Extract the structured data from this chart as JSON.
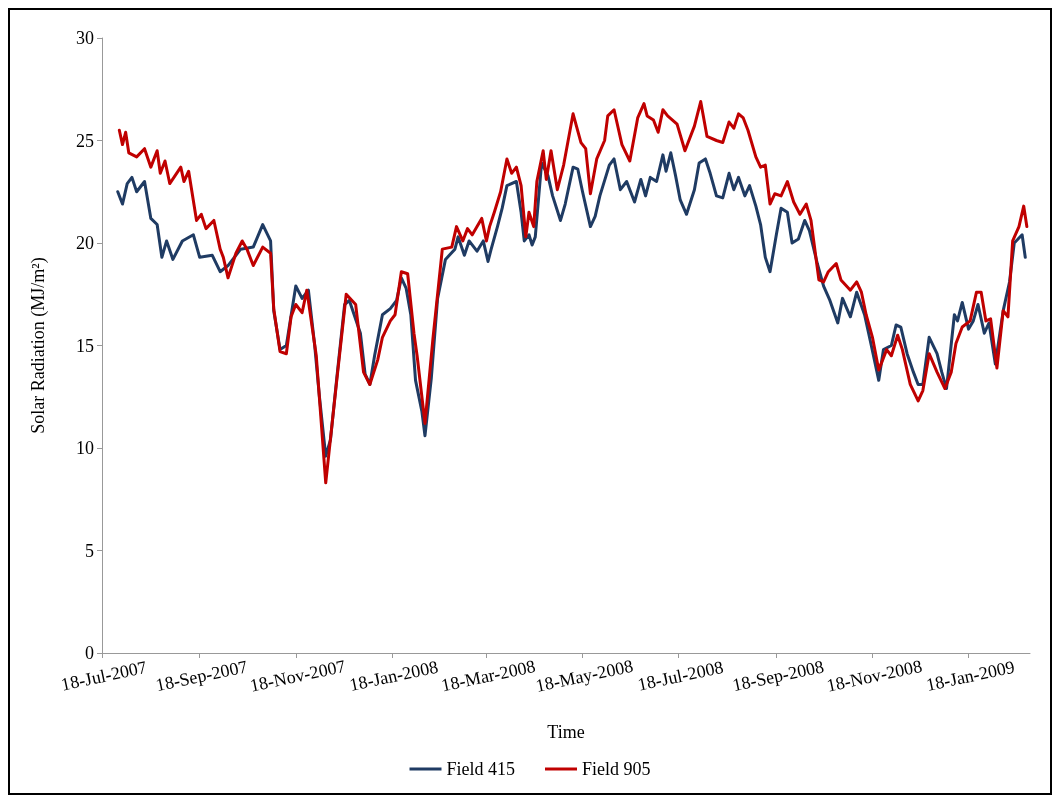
{
  "chart_data": {
    "type": "line",
    "xlabel": "Time",
    "ylabel": "Solar Radiation (MJ/m²)",
    "xlim": [
      "2007-07-18",
      "2009-02-26"
    ],
    "ylim": [
      0,
      30
    ],
    "xticks": [
      {
        "value": "2007-07-18",
        "label": "18-Jul-2007"
      },
      {
        "value": "2007-09-18",
        "label": "18-Sep-2007"
      },
      {
        "value": "2007-11-18",
        "label": "18-Nov-2007"
      },
      {
        "value": "2008-01-18",
        "label": "18-Jan-2008"
      },
      {
        "value": "2008-03-18",
        "label": "18-Mar-2008"
      },
      {
        "value": "2008-05-18",
        "label": "18-May-2008"
      },
      {
        "value": "2008-07-18",
        "label": "18-Jul-2008"
      },
      {
        "value": "2008-09-18",
        "label": "18-Sep-2008"
      },
      {
        "value": "2008-11-18",
        "label": "18-Nov-2008"
      },
      {
        "value": "2009-01-18",
        "label": "18-Jan-2009"
      }
    ],
    "yticks": [
      0,
      5,
      10,
      15,
      20,
      25,
      30
    ],
    "grid": false,
    "legend": "bottom",
    "marker": "none",
    "series": [
      {
        "name": "Field 415",
        "color": "#1f3b63",
        "x": [
          "2007-07-28",
          "2007-07-31",
          "2007-08-03",
          "2007-08-06",
          "2007-08-09",
          "2007-08-14",
          "2007-08-18",
          "2007-08-22",
          "2007-08-25",
          "2007-08-28",
          "2007-09-01",
          "2007-09-07",
          "2007-09-14",
          "2007-09-18",
          "2007-09-26",
          "2007-10-01",
          "2007-10-06",
          "2007-10-14",
          "2007-10-22",
          "2007-10-28",
          "2007-11-02",
          "2007-11-04",
          "2007-11-08",
          "2007-11-12",
          "2007-11-18",
          "2007-11-22",
          "2007-11-26",
          "2007-11-30",
          "2007-12-03",
          "2007-12-07",
          "2007-12-10",
          "2007-12-14",
          "2007-12-19",
          "2007-12-22",
          "2007-12-29",
          "2008-01-01",
          "2008-01-04",
          "2008-01-07",
          "2008-01-12",
          "2008-01-17",
          "2008-01-21",
          "2008-01-24",
          "2008-01-27",
          "2008-01-30",
          "2008-02-02",
          "2008-02-06",
          "2008-02-08",
          "2008-02-12",
          "2008-02-16",
          "2008-02-21",
          "2008-02-27",
          "2008-02-29",
          "2008-03-04",
          "2008-03-07",
          "2008-03-12",
          "2008-03-16",
          "2008-03-19",
          "2008-03-21",
          "2008-03-25",
          "2008-03-28",
          "2008-03-31",
          "2008-04-06",
          "2008-04-09",
          "2008-04-11",
          "2008-04-14",
          "2008-04-16",
          "2008-04-18",
          "2008-04-22",
          "2008-04-26",
          "2008-04-29",
          "2008-05-04",
          "2008-05-07",
          "2008-05-12",
          "2008-05-15",
          "2008-05-18",
          "2008-05-23",
          "2008-05-26",
          "2008-05-29",
          "2008-06-04",
          "2008-06-07",
          "2008-06-11",
          "2008-06-15",
          "2008-06-20",
          "2008-06-24",
          "2008-06-27",
          "2008-06-30",
          "2008-07-04",
          "2008-07-08",
          "2008-07-10",
          "2008-07-13",
          "2008-07-16",
          "2008-07-19",
          "2008-07-23",
          "2008-07-28",
          "2008-07-31",
          "2008-08-04",
          "2008-08-07",
          "2008-08-11",
          "2008-08-15",
          "2008-08-19",
          "2008-08-22",
          "2008-08-25",
          "2008-08-29",
          "2008-09-01",
          "2008-09-05",
          "2008-09-08",
          "2008-09-11",
          "2008-09-14",
          "2008-09-18",
          "2008-09-21",
          "2008-09-25",
          "2008-09-28",
          "2008-10-02",
          "2008-10-06",
          "2008-10-09",
          "2008-10-14",
          "2008-10-18",
          "2008-10-22",
          "2008-10-27",
          "2008-10-30",
          "2008-11-04",
          "2008-11-08",
          "2008-11-13",
          "2008-11-17",
          "2008-11-22",
          "2008-11-25",
          "2008-11-30",
          "2008-12-03",
          "2008-12-06",
          "2008-12-10",
          "2008-12-14",
          "2008-12-17",
          "2008-12-20",
          "2008-12-24",
          "2008-12-29",
          "2009-01-01",
          "2009-01-04",
          "2009-01-09",
          "2009-01-11",
          "2009-01-14",
          "2009-01-18",
          "2009-01-21",
          "2009-01-24",
          "2009-01-28",
          "2009-01-31",
          "2009-02-04",
          "2009-02-09",
          "2009-02-13",
          "2009-02-16",
          "2009-02-21",
          "2009-02-23"
        ],
        "values": [
          22.5,
          21.9,
          22.9,
          23.2,
          22.5,
          23.0,
          21.2,
          20.9,
          19.3,
          20.1,
          19.2,
          20.1,
          20.4,
          19.3,
          19.4,
          18.6,
          18.9,
          19.7,
          19.8,
          20.9,
          20.1,
          16.7,
          14.8,
          15.0,
          17.9,
          17.3,
          17.7,
          15.0,
          12.5,
          9.6,
          10.4,
          13.4,
          17.0,
          17.2,
          15.6,
          13.6,
          13.1,
          14.5,
          16.5,
          16.8,
          17.2,
          18.3,
          17.8,
          16.5,
          13.3,
          11.8,
          10.6,
          13.4,
          17.3,
          19.2,
          19.7,
          20.3,
          19.4,
          20.1,
          19.6,
          20.1,
          19.1,
          19.7,
          20.8,
          21.7,
          22.8,
          23.0,
          21.5,
          20.1,
          20.4,
          19.9,
          20.3,
          23.9,
          23.3,
          22.3,
          21.1,
          21.9,
          23.7,
          23.6,
          22.5,
          20.8,
          21.3,
          22.3,
          23.8,
          24.1,
          22.6,
          23.0,
          22.0,
          23.1,
          22.3,
          23.2,
          23.0,
          24.3,
          23.5,
          24.4,
          23.3,
          22.1,
          21.4,
          22.6,
          23.9,
          24.1,
          23.4,
          22.3,
          22.2,
          23.4,
          22.6,
          23.2,
          22.3,
          22.8,
          21.8,
          20.9,
          19.3,
          18.6,
          20.4,
          21.7,
          21.5,
          20.0,
          20.2,
          21.1,
          20.6,
          19.0,
          17.9,
          17.2,
          16.1,
          17.3,
          16.4,
          17.6,
          16.5,
          15.1,
          13.3,
          14.8,
          15.0,
          16.0,
          15.9,
          14.6,
          13.7,
          13.1,
          13.1,
          15.4,
          14.6,
          13.7,
          12.9,
          16.5,
          16.2,
          17.1,
          15.8,
          16.2,
          17.0,
          15.6,
          16.1,
          14.1,
          16.7,
          18.1,
          20.0,
          20.4,
          19.3
        ]
      },
      {
        "name": "Field 905",
        "color": "#c00000",
        "x": [
          "2007-07-29",
          "2007-07-31",
          "2007-08-02",
          "2007-08-04",
          "2007-08-09",
          "2007-08-14",
          "2007-08-18",
          "2007-08-22",
          "2007-08-24",
          "2007-08-27",
          "2007-08-30",
          "2007-09-06",
          "2007-09-08",
          "2007-09-11",
          "2007-09-16",
          "2007-09-19",
          "2007-09-22",
          "2007-09-27",
          "2007-10-01",
          "2007-10-03",
          "2007-10-06",
          "2007-10-11",
          "2007-10-15",
          "2007-10-18",
          "2007-10-22",
          "2007-10-28",
          "2007-11-02",
          "2007-11-04",
          "2007-11-08",
          "2007-11-12",
          "2007-11-15",
          "2007-11-18",
          "2007-11-22",
          "2007-11-25",
          "2007-12-01",
          "2007-12-07",
          "2007-12-14",
          "2007-12-20",
          "2007-12-26",
          "2007-12-31",
          "2008-01-04",
          "2008-01-09",
          "2008-01-12",
          "2008-01-17",
          "2008-01-20",
          "2008-01-24",
          "2008-01-28",
          "2008-02-01",
          "2008-02-03",
          "2008-02-08",
          "2008-02-13",
          "2008-02-19",
          "2008-02-25",
          "2008-02-28",
          "2008-03-03",
          "2008-03-06",
          "2008-03-09",
          "2008-03-15",
          "2008-03-18",
          "2008-03-20",
          "2008-03-23",
          "2008-03-27",
          "2008-03-31",
          "2008-04-03",
          "2008-04-06",
          "2008-04-09",
          "2008-04-12",
          "2008-04-14",
          "2008-04-17",
          "2008-04-19",
          "2008-04-23",
          "2008-04-25",
          "2008-04-28",
          "2008-05-02",
          "2008-05-06",
          "2008-05-12",
          "2008-05-17",
          "2008-05-20",
          "2008-05-23",
          "2008-05-27",
          "2008-06-01",
          "2008-06-03",
          "2008-06-07",
          "2008-06-12",
          "2008-06-17",
          "2008-06-22",
          "2008-06-26",
          "2008-06-28",
          "2008-07-02",
          "2008-07-05",
          "2008-07-08",
          "2008-07-11",
          "2008-07-17",
          "2008-07-22",
          "2008-07-28",
          "2008-08-01",
          "2008-08-05",
          "2008-08-11",
          "2008-08-15",
          "2008-08-19",
          "2008-08-22",
          "2008-08-25",
          "2008-08-28",
          "2008-08-31",
          "2008-09-05",
          "2008-09-08",
          "2008-09-11",
          "2008-09-14",
          "2008-09-17",
          "2008-09-21",
          "2008-09-25",
          "2008-09-29",
          "2008-10-03",
          "2008-10-07",
          "2008-10-10",
          "2008-10-15",
          "2008-10-18",
          "2008-10-21",
          "2008-10-26",
          "2008-10-29",
          "2008-11-04",
          "2008-11-08",
          "2008-11-11",
          "2008-11-14",
          "2008-11-18",
          "2008-11-22",
          "2008-11-27",
          "2008-11-30",
          "2008-12-04",
          "2008-12-07",
          "2008-12-12",
          "2008-12-17",
          "2008-12-20",
          "2008-12-24",
          "2008-12-29",
          "2009-01-03",
          "2009-01-07",
          "2009-01-10",
          "2009-01-14",
          "2009-01-19",
          "2009-01-23",
          "2009-01-26",
          "2009-01-29",
          "2009-02-01",
          "2009-02-05",
          "2009-02-09",
          "2009-02-12",
          "2009-02-15",
          "2009-02-19",
          "2009-02-22",
          "2009-02-24"
        ],
        "values": [
          25.5,
          24.8,
          25.4,
          24.4,
          24.2,
          24.6,
          23.7,
          24.5,
          23.4,
          24.0,
          22.9,
          23.7,
          23.0,
          23.5,
          21.1,
          21.4,
          20.7,
          21.1,
          19.7,
          19.3,
          18.3,
          19.5,
          20.1,
          19.7,
          18.9,
          19.8,
          19.5,
          16.8,
          14.7,
          14.6,
          16.4,
          17.0,
          16.6,
          17.7,
          14.5,
          8.3,
          13.3,
          17.5,
          17.0,
          13.7,
          13.1,
          14.3,
          15.4,
          16.2,
          16.5,
          18.6,
          18.5,
          15.6,
          14.5,
          11.2,
          15.3,
          19.7,
          19.8,
          20.8,
          20.1,
          20.7,
          20.4,
          21.2,
          20.1,
          20.8,
          21.5,
          22.5,
          24.1,
          23.4,
          23.7,
          22.8,
          20.3,
          21.5,
          20.8,
          23.0,
          24.5,
          23.1,
          24.5,
          22.6,
          23.8,
          26.3,
          24.9,
          24.6,
          22.4,
          24.1,
          25.0,
          26.2,
          26.5,
          24.8,
          24.0,
          26.1,
          26.8,
          26.2,
          26.0,
          25.4,
          26.5,
          26.2,
          25.8,
          24.5,
          25.7,
          26.9,
          25.2,
          25.0,
          24.9,
          25.9,
          25.6,
          26.3,
          26.1,
          25.5,
          24.2,
          23.7,
          23.8,
          21.9,
          22.4,
          22.3,
          23.0,
          22.0,
          21.4,
          21.9,
          21.1,
          18.2,
          18.1,
          18.6,
          19.0,
          18.2,
          17.7,
          18.1,
          17.6,
          16.5,
          15.4,
          13.8,
          14.8,
          14.5,
          15.5,
          14.8,
          13.1,
          12.3,
          12.8,
          14.6,
          13.7,
          12.9,
          13.7,
          15.1,
          15.9,
          16.2,
          17.6,
          17.6,
          16.2,
          16.3,
          13.9,
          16.7,
          16.4,
          20.1,
          20.8,
          21.8,
          20.8
        ]
      }
    ]
  }
}
